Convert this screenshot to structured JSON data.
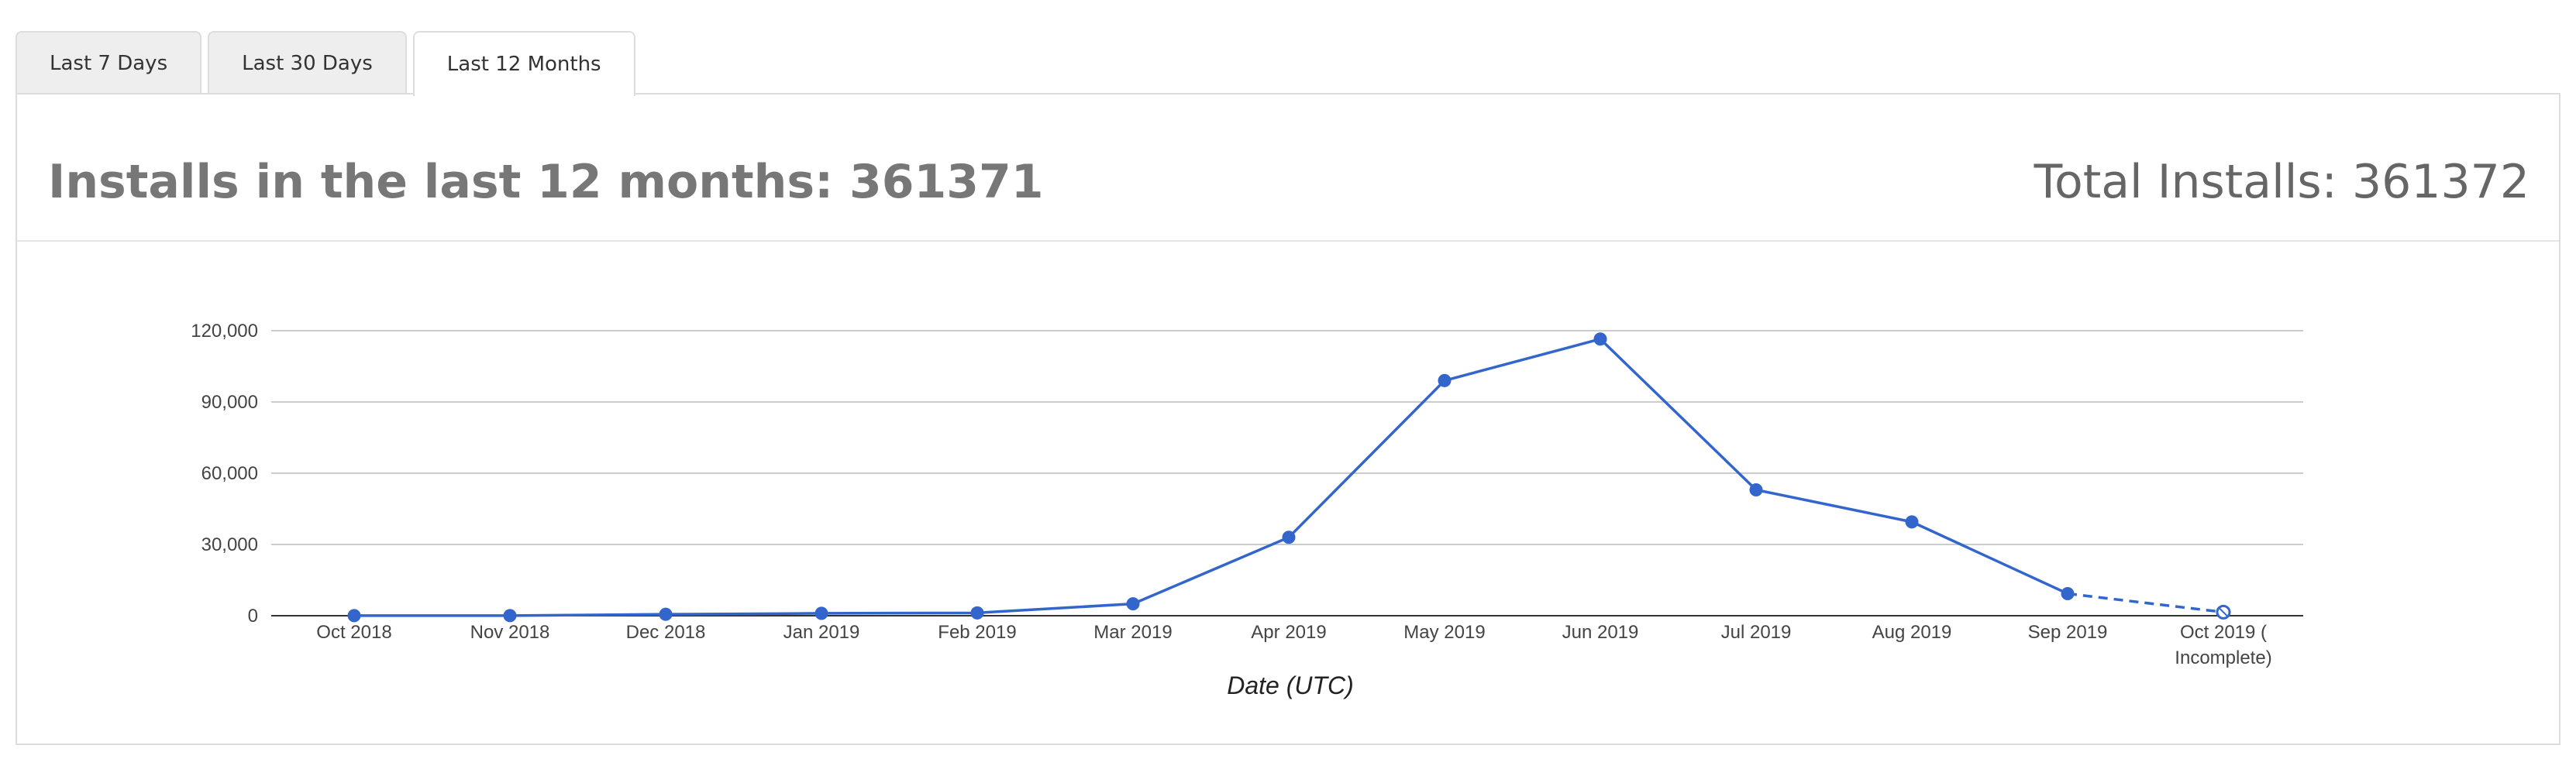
{
  "tabs": [
    {
      "label": "Last 7 Days",
      "active": false
    },
    {
      "label": "Last 30 Days",
      "active": false
    },
    {
      "label": "Last 12 Months",
      "active": true
    }
  ],
  "summary": {
    "left": "Installs in the last 12 months: 361371",
    "right": "Total Installs: 361372"
  },
  "chart_data": {
    "type": "line",
    "xlabel": "Date (UTC)",
    "ylabel": "",
    "title": "",
    "ylim": [
      0,
      130000
    ],
    "yticks": [
      0,
      30000,
      60000,
      90000,
      120000
    ],
    "ytick_labels": [
      "0",
      "30,000",
      "60,000",
      "90,000",
      "120,000"
    ],
    "categories": [
      "Oct 2018",
      "Nov 2018",
      "Dec 2018",
      "Jan 2019",
      "Feb 2019",
      "Mar 2019",
      "Apr 2019",
      "May 2019",
      "Jun 2019",
      "Jul 2019",
      "Aug 2019",
      "Sep 2019",
      "Oct 2019 ( Incomplete)"
    ],
    "series": [
      {
        "values": [
          30,
          50,
          600,
          1000,
          1200,
          5000,
          33000,
          99000,
          116500,
          53000,
          39500,
          9300,
          1500
        ],
        "color": "#3366cc"
      }
    ],
    "incomplete_last_point": true,
    "grid": true,
    "colors": {
      "line": "#3366cc",
      "grid": "#cccccc",
      "axis": "#333333",
      "tick_text": "#444444"
    }
  }
}
